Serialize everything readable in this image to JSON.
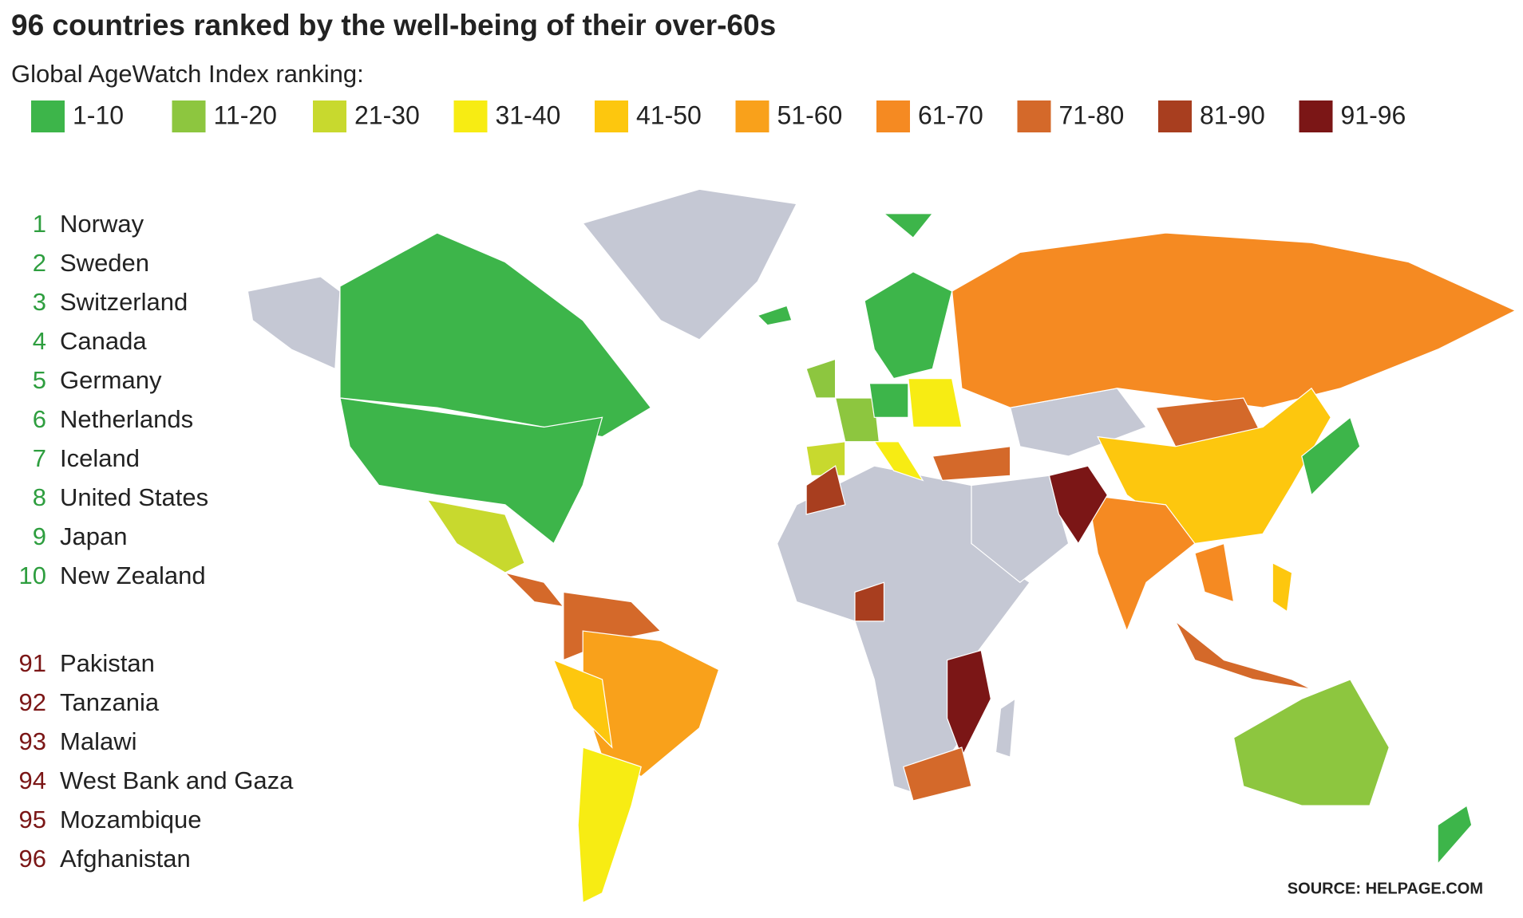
{
  "header": {
    "title": "96 countries ranked by the well-being of their over-60s",
    "subtitle": "Global AgeWatch Index ranking:"
  },
  "legend": {
    "items": [
      {
        "label": "1-10",
        "color": "#3db54a"
      },
      {
        "label": "11-20",
        "color": "#8dc63f"
      },
      {
        "label": "21-30",
        "color": "#c8d92e"
      },
      {
        "label": "31-40",
        "color": "#f7ec13"
      },
      {
        "label": "41-50",
        "color": "#fdc70e"
      },
      {
        "label": "51-60",
        "color": "#f9a11b"
      },
      {
        "label": "61-70",
        "color": "#f58a22"
      },
      {
        "label": "71-80",
        "color": "#d4692a"
      },
      {
        "label": "81-90",
        "color": "#a83e1f"
      },
      {
        "label": "91-96",
        "color": "#7b1616"
      }
    ]
  },
  "top_list": {
    "color": "#2e9e3f",
    "rows": [
      {
        "rank": 1,
        "name": "Norway"
      },
      {
        "rank": 2,
        "name": "Sweden"
      },
      {
        "rank": 3,
        "name": "Switzerland"
      },
      {
        "rank": 4,
        "name": "Canada"
      },
      {
        "rank": 5,
        "name": "Germany"
      },
      {
        "rank": 6,
        "name": "Netherlands"
      },
      {
        "rank": 7,
        "name": "Iceland"
      },
      {
        "rank": 8,
        "name": "United States"
      },
      {
        "rank": 9,
        "name": "Japan"
      },
      {
        "rank": 10,
        "name": "New Zealand"
      }
    ]
  },
  "bottom_list": {
    "color": "#7b1616",
    "rows": [
      {
        "rank": 91,
        "name": "Pakistan"
      },
      {
        "rank": 92,
        "name": "Tanzania"
      },
      {
        "rank": 93,
        "name": "Malawi"
      },
      {
        "rank": 94,
        "name": "West Bank and Gaza"
      },
      {
        "rank": 95,
        "name": "Mozambique"
      },
      {
        "rank": 96,
        "name": "Afghanistan"
      }
    ]
  },
  "footer": {
    "source": "SOURCE: HELPAGE.COM"
  }
}
